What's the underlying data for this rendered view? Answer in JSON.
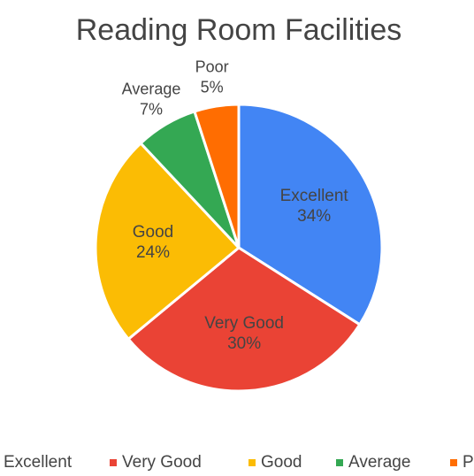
{
  "chart_data": {
    "type": "pie",
    "title": "Reading Room Facilities",
    "categories": [
      "Excellent",
      "Very Good",
      "Good",
      "Average",
      "Poor"
    ],
    "values": [
      34,
      30,
      24,
      7,
      5
    ],
    "value_labels": [
      "34%",
      "30%",
      "24%",
      "7%",
      "5%"
    ],
    "colors": [
      "#4285f4",
      "#ea4335",
      "#fbbc04",
      "#34a853",
      "#ff6d01"
    ],
    "legend": "bottom"
  }
}
